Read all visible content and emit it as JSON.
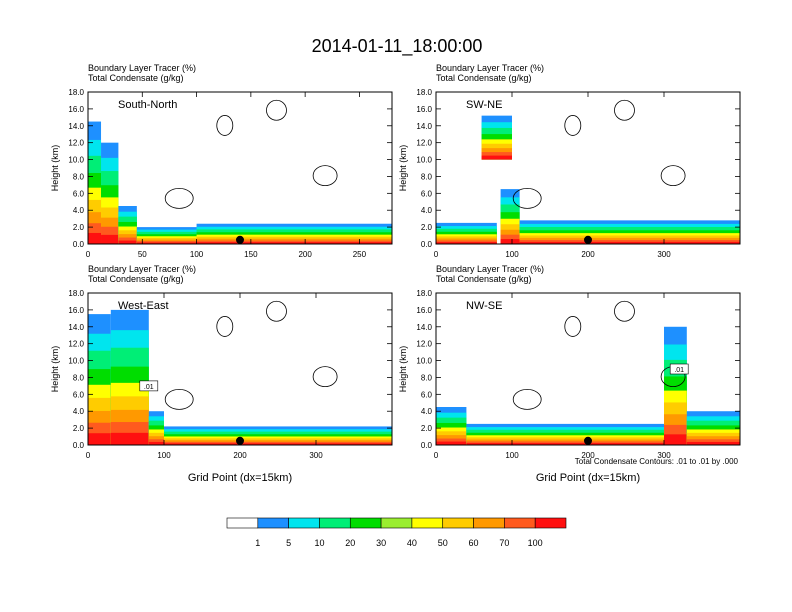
{
  "title": "2014-01-11_18:00:00",
  "footnote": "Total Condensate Contours: .01 to .01 by .000",
  "colorbar": {
    "colors": [
      "#ffffff",
      "#1e90ff",
      "#00e5ee",
      "#00ee76",
      "#00dd00",
      "#9aee30",
      "#ffff00",
      "#ffcc00",
      "#ff9900",
      "#ff5a1e",
      "#ff1010"
    ],
    "labels": [
      "1",
      "5",
      "10",
      "20",
      "30",
      "40",
      "50",
      "60",
      "70",
      "100"
    ]
  },
  "chart_data": [
    {
      "type": "heatmap",
      "line1": "Boundary Layer Tracer   (%)",
      "line2": "Total Condensate   (g/kg)",
      "section": "South-North",
      "ylabel": "Height (km)",
      "xlabel": "",
      "yticks": [
        "0.0",
        "2.0",
        "4.0",
        "6.0",
        "8.0",
        "10.0",
        "12.0",
        "14.0",
        "16.0",
        "18.0"
      ],
      "ylim": [
        0,
        18
      ],
      "xlim": [
        0,
        280
      ],
      "xticks": [
        0,
        50,
        100,
        150,
        200,
        250
      ],
      "xtick_labels": [
        "0",
        "50",
        "100",
        "150",
        "200",
        "250"
      ],
      "marker_x": 140,
      "contour_label": "",
      "tracer_columns": [
        {
          "x": [
            0,
            12
          ],
          "top": 14.5
        },
        {
          "x": [
            12,
            28
          ],
          "top": 12.0
        },
        {
          "x": [
            28,
            45
          ],
          "top": 4.5
        },
        {
          "x": [
            45,
            100
          ],
          "top": 2.0
        },
        {
          "x": [
            100,
            280
          ],
          "top": 2.4
        }
      ]
    },
    {
      "type": "heatmap",
      "line1": "Boundary Layer Tracer   (%)",
      "line2": "Total Condensate   (g/kg)",
      "section": "SW-NE",
      "ylabel": "Height (km)",
      "xlabel": "",
      "yticks": [
        "0.0",
        "2.0",
        "4.0",
        "6.0",
        "8.0",
        "10.0",
        "12.0",
        "14.0",
        "16.0",
        "18.0"
      ],
      "ylim": [
        0,
        18
      ],
      "xlim": [
        0,
        400
      ],
      "xticks": [
        0,
        100,
        200,
        300
      ],
      "xtick_labels": [
        "0",
        "100",
        "200",
        "300"
      ],
      "marker_x": 200,
      "contour_label": "",
      "tracer_columns": [
        {
          "x": [
            0,
            80
          ],
          "top": 2.5
        },
        {
          "x": [
            85,
            110
          ],
          "top": 6.5
        },
        {
          "x": [
            110,
            400
          ],
          "top": 2.8
        },
        {
          "x": [
            60,
            100
          ],
          "top": 15.2,
          "bottom": 10.0
        }
      ]
    },
    {
      "type": "heatmap",
      "line1": "Boundary Layer Tracer   (%)",
      "line2": "Total Condensate   (g/kg)",
      "section": "West-East",
      "ylabel": "Height (km)",
      "xlabel": "Grid Point (dx=15km)",
      "yticks": [
        "0.0",
        "2.0",
        "4.0",
        "6.0",
        "8.0",
        "10.0",
        "12.0",
        "14.0",
        "16.0",
        "18.0"
      ],
      "ylim": [
        0,
        18
      ],
      "xlim": [
        0,
        400
      ],
      "xticks": [
        0,
        100,
        200,
        300
      ],
      "xtick_labels": [
        "0",
        "100",
        "200",
        "300"
      ],
      "marker_x": 200,
      "contour_label": ".01",
      "tracer_columns": [
        {
          "x": [
            0,
            30
          ],
          "top": 15.5
        },
        {
          "x": [
            30,
            80
          ],
          "top": 16.0
        },
        {
          "x": [
            80,
            100
          ],
          "top": 4.0
        },
        {
          "x": [
            100,
            400
          ],
          "top": 2.2
        }
      ]
    },
    {
      "type": "heatmap",
      "line1": "Boundary Layer Tracer   (%)",
      "line2": "Total Condensate   (g/kg)",
      "section": "NW-SE",
      "ylabel": "Height (km)",
      "xlabel": "Grid Point (dx=15km)",
      "yticks": [
        "0.0",
        "2.0",
        "4.0",
        "6.0",
        "8.0",
        "10.0",
        "12.0",
        "14.0",
        "16.0",
        "18.0"
      ],
      "ylim": [
        0,
        18
      ],
      "xlim": [
        0,
        400
      ],
      "xticks": [
        0,
        100,
        200,
        300
      ],
      "xtick_labels": [
        "0",
        "100",
        "200",
        "300"
      ],
      "marker_x": 200,
      "contour_label": ".01",
      "tracer_columns": [
        {
          "x": [
            0,
            40
          ],
          "top": 4.5
        },
        {
          "x": [
            40,
            300
          ],
          "top": 2.5
        },
        {
          "x": [
            300,
            330
          ],
          "top": 14.0
        },
        {
          "x": [
            330,
            400
          ],
          "top": 4.0
        }
      ]
    }
  ]
}
